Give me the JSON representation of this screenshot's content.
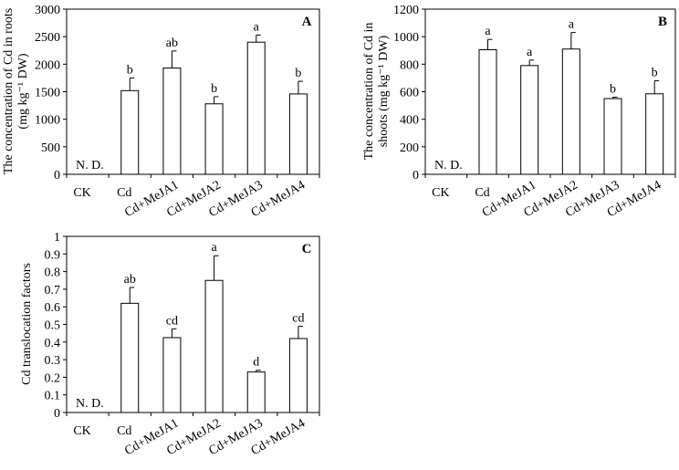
{
  "chart_data": [
    {
      "type": "bar",
      "panel_label": "A",
      "ylabel_line1": "The concentration of Cd in roots",
      "ylabel_line2": "(mg kg⁻¹ DW)",
      "categories": [
        "CK",
        "Cd",
        "Cd+MeJA1",
        "Cd+MeJA2",
        "Cd+MeJA3",
        "Cd+MeJA4"
      ],
      "values": [
        0,
        1520,
        1930,
        1280,
        2400,
        1460
      ],
      "errors": [
        0,
        230,
        310,
        130,
        130,
        230
      ],
      "significance": [
        "",
        "b",
        "ab",
        "b",
        "a",
        "b"
      ],
      "ylim": [
        0,
        3000
      ],
      "yticks": [
        "0",
        "500",
        "1000",
        "1500",
        "2000",
        "2500",
        "3000"
      ],
      "annotation": "N. D."
    },
    {
      "type": "bar",
      "panel_label": "B",
      "ylabel_line1": "The concentration of Cd in",
      "ylabel_line2": "shoots (mg kg⁻¹ DW)",
      "categories": [
        "CK",
        "Cd",
        "Cd+MeJA1",
        "Cd+MeJA2",
        "Cd+MeJA3",
        "Cd+MeJA4"
      ],
      "values": [
        0,
        905,
        790,
        910,
        550,
        585
      ],
      "errors": [
        0,
        75,
        40,
        120,
        10,
        95
      ],
      "significance": [
        "",
        "a",
        "a",
        "a",
        "b",
        "b"
      ],
      "ylim": [
        0,
        1200
      ],
      "yticks": [
        "0",
        "200",
        "400",
        "600",
        "800",
        "1000",
        "1200"
      ],
      "annotation": "N. D."
    },
    {
      "type": "bar",
      "panel_label": "C",
      "ylabel_line1": "Cd translocation factors",
      "ylabel_line2": "",
      "categories": [
        "CK",
        "Cd",
        "Cd+MeJA1",
        "Cd+MeJA2",
        "Cd+MeJA3",
        "Cd+MeJA4"
      ],
      "values": [
        0,
        0.62,
        0.425,
        0.75,
        0.23,
        0.42
      ],
      "errors": [
        0,
        0.09,
        0.05,
        0.14,
        0.01,
        0.07
      ],
      "significance": [
        "",
        "ab",
        "cd",
        "a",
        "d",
        "cd"
      ],
      "ylim": [
        0,
        1
      ],
      "yticks": [
        "0",
        "0.1",
        "0.2",
        "0.3",
        "0.4",
        "0.5",
        "0.6",
        "0.7",
        "0.8",
        "0.9",
        "1"
      ],
      "annotation": "N. D."
    }
  ]
}
